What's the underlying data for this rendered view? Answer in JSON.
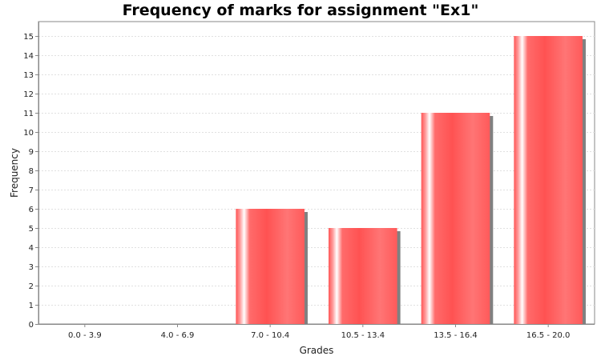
{
  "chart_data": {
    "type": "bar",
    "title": "Frequency of marks for assignment \"Ex1\"",
    "xlabel": "Grades",
    "ylabel": "Frequency",
    "categories": [
      "0.0 - 3.9",
      "4.0 - 6.9",
      "7.0 - 10.4",
      "10.5 - 13.4",
      "13.5 - 16.4",
      "16.5 - 20.0"
    ],
    "values": [
      0,
      0,
      6,
      5,
      11,
      15
    ],
    "ylim": [
      0,
      15.75
    ],
    "yticks": [
      0,
      1,
      2,
      3,
      4,
      5,
      6,
      7,
      8,
      9,
      10,
      11,
      12,
      13,
      14,
      15
    ],
    "grid": true,
    "legend": "none",
    "colors": {
      "bar": "#ff5555",
      "bar_highlight": "#ffffff",
      "shadow": "#808080",
      "grid": "#e0e0e0",
      "axis": "#888888"
    }
  }
}
